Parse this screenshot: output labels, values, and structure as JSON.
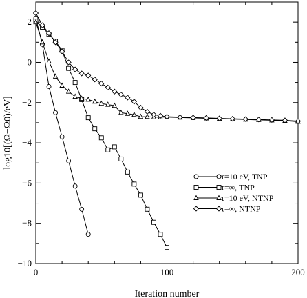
{
  "chart_data": {
    "type": "line",
    "xlabel": "Iteration number",
    "ylabel": "log10[(Ω−Ω0)/eV]",
    "xlim": [
      0,
      200
    ],
    "ylim": [
      -10,
      3
    ],
    "xticks": [
      0,
      100,
      200
    ],
    "xtick_labels": [
      "0",
      "100",
      "200"
    ],
    "yticks": [
      2,
      0,
      -2,
      -4,
      -6,
      -8,
      -10
    ],
    "ytick_labels": [
      "2",
      "0",
      "−2",
      "−4",
      "−6",
      "−8",
      "−10"
    ],
    "grid": false,
    "legend_position": "lower-right",
    "series": [
      {
        "name": "τ=10 eV, TNP",
        "marker": "circle",
        "points": [
          [
            0,
            2.2
          ],
          [
            5,
            0.9
          ],
          [
            10,
            -1.2
          ],
          [
            15,
            -2.5
          ],
          [
            20,
            -3.7
          ],
          [
            25,
            -4.9
          ],
          [
            30,
            -6.15
          ],
          [
            35,
            -7.3
          ],
          [
            40,
            -8.55
          ]
        ]
      },
      {
        "name": "τ=∞, TNP",
        "marker": "square",
        "points": [
          [
            0,
            2.05
          ],
          [
            5,
            1.75
          ],
          [
            10,
            1.4
          ],
          [
            15,
            1.05
          ],
          [
            20,
            0.6
          ],
          [
            25,
            -0.3
          ],
          [
            30,
            -1.0
          ],
          [
            35,
            -1.85
          ],
          [
            40,
            -2.75
          ],
          [
            45,
            -3.3
          ],
          [
            50,
            -3.75
          ],
          [
            55,
            -4.35
          ],
          [
            60,
            -4.2
          ],
          [
            65,
            -4.8
          ],
          [
            70,
            -5.45
          ],
          [
            75,
            -6.05
          ],
          [
            80,
            -6.6
          ],
          [
            85,
            -7.3
          ],
          [
            90,
            -7.95
          ],
          [
            95,
            -8.55
          ],
          [
            100,
            -9.2
          ]
        ]
      },
      {
        "name": "τ=10 eV, NTNP",
        "marker": "triangle",
        "points": [
          [
            0,
            2.0
          ],
          [
            5,
            1.0
          ],
          [
            10,
            0.05
          ],
          [
            15,
            -0.7
          ],
          [
            20,
            -1.15
          ],
          [
            25,
            -1.45
          ],
          [
            30,
            -1.7
          ],
          [
            35,
            -1.8
          ],
          [
            40,
            -1.85
          ],
          [
            45,
            -1.95
          ],
          [
            50,
            -2.05
          ],
          [
            55,
            -2.1
          ],
          [
            60,
            -2.15
          ],
          [
            65,
            -2.5
          ],
          [
            70,
            -2.55
          ],
          [
            75,
            -2.6
          ],
          [
            80,
            -2.7
          ],
          [
            85,
            -2.7
          ],
          [
            90,
            -2.72
          ],
          [
            95,
            -2.72
          ],
          [
            100,
            -2.72
          ],
          [
            110,
            -2.74
          ],
          [
            120,
            -2.76
          ],
          [
            130,
            -2.78
          ],
          [
            140,
            -2.8
          ],
          [
            150,
            -2.82
          ],
          [
            160,
            -2.84
          ],
          [
            170,
            -2.86
          ],
          [
            180,
            -2.88
          ],
          [
            190,
            -2.9
          ],
          [
            200,
            -2.95
          ]
        ]
      },
      {
        "name": "τ=∞, NTNP",
        "marker": "diamond",
        "points": [
          [
            0,
            2.45
          ],
          [
            5,
            1.85
          ],
          [
            10,
            1.45
          ],
          [
            15,
            1.0
          ],
          [
            20,
            0.55
          ],
          [
            25,
            0.0
          ],
          [
            30,
            -0.35
          ],
          [
            35,
            -0.55
          ],
          [
            40,
            -0.65
          ],
          [
            45,
            -0.85
          ],
          [
            50,
            -1.05
          ],
          [
            55,
            -1.25
          ],
          [
            60,
            -1.45
          ],
          [
            65,
            -1.6
          ],
          [
            70,
            -1.75
          ],
          [
            75,
            -1.95
          ],
          [
            80,
            -2.25
          ],
          [
            85,
            -2.45
          ],
          [
            90,
            -2.6
          ],
          [
            95,
            -2.65
          ],
          [
            100,
            -2.7
          ],
          [
            110,
            -2.72
          ],
          [
            120,
            -2.74
          ],
          [
            130,
            -2.76
          ],
          [
            140,
            -2.78
          ],
          [
            150,
            -2.8
          ],
          [
            160,
            -2.82
          ],
          [
            170,
            -2.84
          ],
          [
            180,
            -2.86
          ],
          [
            190,
            -2.88
          ],
          [
            200,
            -2.92
          ]
        ]
      }
    ]
  }
}
